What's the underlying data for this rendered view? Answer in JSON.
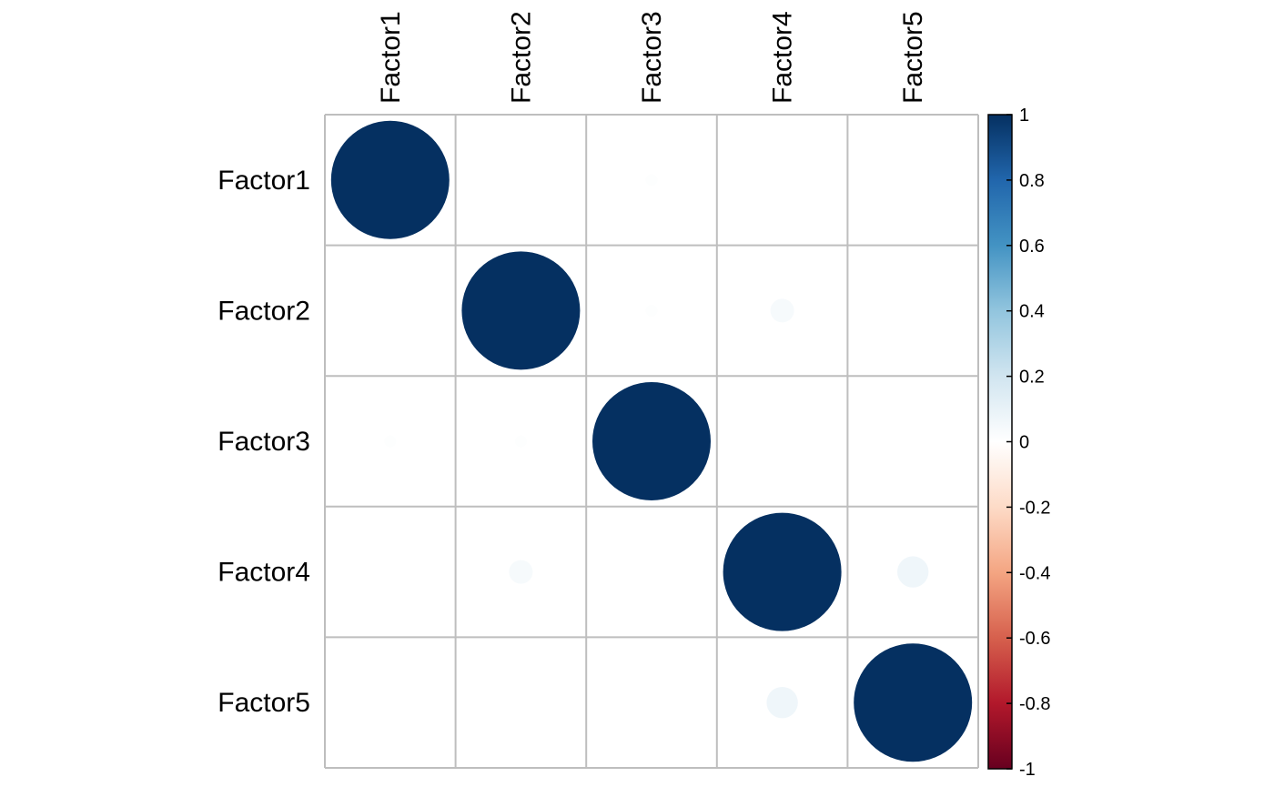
{
  "chart_data": {
    "type": "heatmap",
    "method": "circle",
    "row_labels": [
      "Factor1",
      "Factor2",
      "Factor3",
      "Factor4",
      "Factor5"
    ],
    "col_labels": [
      "Factor1",
      "Factor2",
      "Factor3",
      "Factor4",
      "Factor5"
    ],
    "matrix": [
      [
        1.0,
        0.0,
        0.01,
        0.0,
        0.0
      ],
      [
        0.0,
        1.0,
        0.01,
        0.04,
        0.0
      ],
      [
        0.01,
        0.01,
        1.0,
        0.0,
        0.0
      ],
      [
        0.0,
        0.04,
        0.0,
        1.0,
        0.07
      ],
      [
        0.0,
        0.0,
        0.0,
        0.07,
        1.0
      ]
    ],
    "colorbar": {
      "range": [
        -1,
        1
      ],
      "ticks": [
        "1",
        "0.8",
        "0.6",
        "0.4",
        "0.2",
        "0",
        "-0.2",
        "-0.4",
        "-0.6",
        "-0.8",
        "-1"
      ],
      "tick_values": [
        1,
        0.8,
        0.6,
        0.4,
        0.2,
        0,
        -0.2,
        -0.4,
        -0.6,
        -0.8,
        -1
      ],
      "palette": [
        "#67001F",
        "#B2182B",
        "#D6604D",
        "#F4A582",
        "#FDDBC7",
        "#FFFFFF",
        "#D1E5F0",
        "#92C5DE",
        "#4393C3",
        "#2166AC",
        "#053061"
      ],
      "placement": "right"
    },
    "grid": true,
    "grid_color": "#BEBEBE"
  }
}
